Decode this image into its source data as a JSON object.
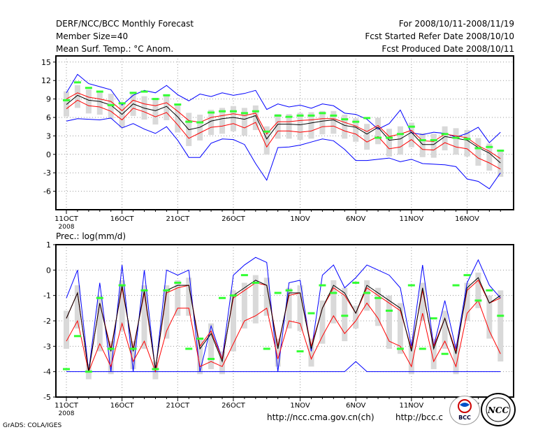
{
  "header": {
    "title": "DERF/NCC/BCC Monthly Forecast",
    "member_size": "Member Size=40",
    "variable": "Mean Surf. Temp.: °C Anom.",
    "period": "For 2008/10/11-2008/11/19",
    "started": "Fcst Started Refer Date 2008/10/10",
    "produced": "Fcst Produced Date 2008/10/11"
  },
  "footer": {
    "grads": "GrADS: COLA/IGES",
    "url1": "http://ncc.cma.gov.cn(ch)",
    "url2": "http://bcc.c",
    "logo_bcc": "BCC",
    "logo_ncc": "NCC"
  },
  "colors": {
    "spread": "#0000ff",
    "mean": "#000000",
    "quartile": "#ff0000",
    "box": "#d9d9d9",
    "best": "#33ff33",
    "grid": "#999999"
  },
  "chart_data": [
    {
      "type": "line",
      "title": "",
      "ylabel": "Mean Surf. Temp.: °C Anom.",
      "ylim": [
        -9,
        16
      ],
      "yticks": [
        15,
        12,
        9,
        6,
        3,
        0,
        -3,
        -6
      ],
      "xtick_labels": [
        "11OCT",
        "16OCT",
        "21OCT",
        "26OCT",
        "1NOV",
        "6NOV",
        "11NOV",
        "16NOV"
      ],
      "xtick_day_index": [
        0,
        5,
        10,
        15,
        21,
        26,
        31,
        36
      ],
      "year_label": "2008",
      "days": 40,
      "series": [
        {
          "name": "max",
          "values": [
            5.4,
            5.8,
            5.7,
            5.6,
            5.9,
            4.3,
            5.0,
            4.1,
            3.4,
            4.5,
            2.3,
            -0.5,
            -0.5,
            1.8,
            2.5,
            2.4,
            1.6,
            -1.5,
            -4.2,
            1.1,
            1.2,
            1.5,
            2.0,
            2.5,
            2.2,
            0.8,
            -1.0,
            -1.0,
            -0.8,
            -0.6,
            -1.2,
            -0.8,
            -1.5,
            -1.6,
            -1.7,
            -2.0,
            -4.0,
            -4.4,
            -5.6,
            -3.0
          ]
        },
        {
          "name": "min",
          "values": [
            10.0,
            13.0,
            11.5,
            11.0,
            10.5,
            8.0,
            9.6,
            10.4,
            10.0,
            11.2,
            9.7,
            8.7,
            9.8,
            9.4,
            10.0,
            9.6,
            9.9,
            10.4,
            7.3,
            8.2,
            7.7,
            8.0,
            7.5,
            8.2,
            7.9,
            6.7,
            6.5,
            5.7,
            4.1,
            5.0,
            7.2,
            3.5,
            3.2,
            3.6,
            3.4,
            2.8,
            3.4,
            4.4,
            1.9,
            3.6
          ]
        },
        {
          "name": "mean",
          "values": [
            8.1,
            9.6,
            8.8,
            8.6,
            8.0,
            6.5,
            8.2,
            7.5,
            7.1,
            7.8,
            6.1,
            4.0,
            4.4,
            5.4,
            5.8,
            6.0,
            5.7,
            6.3,
            2.5,
            4.9,
            4.9,
            4.8,
            5.1,
            5.4,
            5.6,
            4.7,
            4.4,
            3.3,
            4.4,
            2.3,
            2.5,
            3.6,
            1.6,
            1.6,
            2.9,
            2.6,
            2.3,
            1.1,
            0.2,
            -1.4
          ]
        },
        {
          "name": "q75",
          "values": [
            9.0,
            10.0,
            9.3,
            9.0,
            8.6,
            7.1,
            8.8,
            8.2,
            7.9,
            8.4,
            7.0,
            5.5,
            5.2,
            6.0,
            6.3,
            6.6,
            6.3,
            6.7,
            3.3,
            5.3,
            5.3,
            5.5,
            5.6,
            5.8,
            5.8,
            5.2,
            4.6,
            3.7,
            4.7,
            2.9,
            3.3,
            3.9,
            2.2,
            2.1,
            3.3,
            3.0,
            2.7,
            1.4,
            0.5,
            -0.7
          ]
        },
        {
          "name": "q25",
          "values": [
            7.4,
            8.8,
            7.9,
            7.7,
            7.0,
            5.6,
            7.5,
            6.9,
            6.1,
            6.8,
            4.8,
            2.6,
            3.5,
            4.4,
            4.6,
            5.0,
            4.3,
            5.2,
            1.2,
            3.8,
            3.8,
            3.6,
            3.8,
            4.5,
            4.6,
            3.8,
            3.3,
            2.0,
            2.9,
            0.9,
            1.2,
            2.4,
            0.8,
            0.7,
            1.9,
            1.2,
            0.9,
            -0.6,
            -1.4,
            -2.4
          ]
        },
        {
          "name": "best_member",
          "values": [
            8.8,
            11.7,
            10.8,
            10.2,
            8.0,
            8.3,
            10.0,
            10.2,
            9.0,
            9.6,
            8.1,
            5.3,
            5.2,
            6.8,
            7.0,
            7.0,
            6.7,
            7.0,
            3.7,
            6.3,
            6.1,
            6.3,
            6.3,
            6.7,
            6.3,
            5.7,
            5.3,
            5.9,
            2.7,
            2.7,
            3.3,
            4.5,
            2.3,
            2.3,
            3.3,
            2.7,
            2.5,
            1.0,
            1.2,
            0.6
          ]
        }
      ]
    },
    {
      "type": "line",
      "title": "",
      "ylabel": "Prec.: log(mm/d)",
      "ylim": [
        -5,
        1
      ],
      "yticks": [
        1,
        0,
        -1,
        -2,
        -3,
        -4,
        -5
      ],
      "xtick_labels": [
        "11OCT",
        "16OCT",
        "21OCT",
        "26OCT",
        "1NOV",
        "6NOV",
        "11NOV",
        "16NOV"
      ],
      "xtick_day_index": [
        0,
        5,
        10,
        15,
        21,
        26,
        31,
        36
      ],
      "year_label": "2008",
      "days": 40,
      "series": [
        {
          "name": "max",
          "values": [
            -1.1,
            0.0,
            -4.0,
            -0.5,
            -4.0,
            0.2,
            -4.0,
            0.0,
            -4.0,
            0.0,
            -0.2,
            0.0,
            -4.0,
            -2.2,
            -3.5,
            -0.2,
            0.2,
            0.5,
            0.3,
            -4.0,
            -0.5,
            -0.4,
            -3.2,
            -0.2,
            0.2,
            -0.7,
            -0.3,
            0.2,
            0.0,
            -0.2,
            -0.7,
            -3.0,
            0.2,
            -3.0,
            -1.2,
            -3.1,
            -0.5,
            0.4,
            -0.6,
            -1.1
          ]
        },
        {
          "name": "min",
          "values": [
            -4.0,
            -4.0,
            -4.0,
            -4.0,
            -4.0,
            -4.0,
            -4.0,
            -4.0,
            -4.0,
            -4.0,
            -4.0,
            -4.0,
            -4.0,
            -4.0,
            -4.0,
            -4.0,
            -4.0,
            -4.0,
            -4.0,
            -4.0,
            -4.0,
            -4.0,
            -4.0,
            -4.0,
            -4.0,
            -4.0,
            -3.6,
            -4.0,
            -4.0,
            -4.0,
            -4.0,
            -4.0,
            -4.0,
            -4.0,
            -4.0,
            -4.0,
            -4.0,
            -4.0,
            -4.0,
            -4.0
          ]
        },
        {
          "name": "mean",
          "values": [
            -1.9,
            -0.9,
            -4.0,
            -1.3,
            -3.2,
            -0.6,
            -3.2,
            -0.8,
            -3.9,
            -0.8,
            -0.6,
            -0.6,
            -3.1,
            -2.5,
            -3.6,
            -1.0,
            -0.7,
            -0.4,
            -0.6,
            -3.1,
            -0.9,
            -0.9,
            -3.1,
            -1.5,
            -0.6,
            -0.9,
            -1.7,
            -0.6,
            -0.9,
            -1.2,
            -1.5,
            -3.2,
            -0.7,
            -3.1,
            -1.9,
            -3.3,
            -0.7,
            -0.3,
            -1.3,
            -1.0
          ]
        },
        {
          "name": "q75",
          "values": [
            -1.9,
            -0.9,
            -4.0,
            -1.3,
            -3.1,
            -0.7,
            -3.1,
            -0.9,
            -3.9,
            -0.9,
            -0.7,
            -0.6,
            -3.0,
            -2.4,
            -3.5,
            -1.1,
            -0.8,
            -0.5,
            -0.6,
            -3.0,
            -1.0,
            -0.9,
            -3.0,
            -1.5,
            -0.7,
            -1.0,
            -1.7,
            -0.7,
            -1.0,
            -1.3,
            -1.6,
            -3.1,
            -0.8,
            -3.0,
            -1.9,
            -3.2,
            -0.8,
            -0.4,
            -1.3,
            -1.1
          ]
        },
        {
          "name": "q25",
          "values": [
            -2.8,
            -2.0,
            -4.0,
            -2.9,
            -3.8,
            -2.1,
            -3.6,
            -2.8,
            -4.0,
            -2.4,
            -1.5,
            -1.5,
            -3.8,
            -3.6,
            -3.8,
            -2.9,
            -2.0,
            -1.8,
            -1.5,
            -3.5,
            -2.0,
            -2.1,
            -3.5,
            -2.6,
            -1.8,
            -2.5,
            -2.0,
            -1.3,
            -1.9,
            -2.8,
            -3.0,
            -3.8,
            -1.7,
            -3.6,
            -2.8,
            -3.8,
            -1.7,
            -1.2,
            -2.4,
            -3.3
          ]
        },
        {
          "name": "best_member",
          "values": [
            -3.9,
            -2.6,
            -4.0,
            -1.1,
            -3.1,
            -0.6,
            -3.1,
            -0.8,
            -3.9,
            -0.8,
            -0.5,
            -3.1,
            -2.7,
            -3.5,
            -1.1,
            -1.0,
            -0.2,
            -0.5,
            -3.1,
            -0.9,
            -0.8,
            -3.2,
            -1.7,
            -0.6,
            -0.9,
            -1.8,
            -0.5,
            -0.9,
            -1.1,
            -1.6,
            -3.1,
            -0.6,
            -3.1,
            -1.9,
            -3.3,
            -0.6,
            -0.2,
            -1.2,
            -0.8,
            -1.8
          ]
        }
      ]
    }
  ]
}
